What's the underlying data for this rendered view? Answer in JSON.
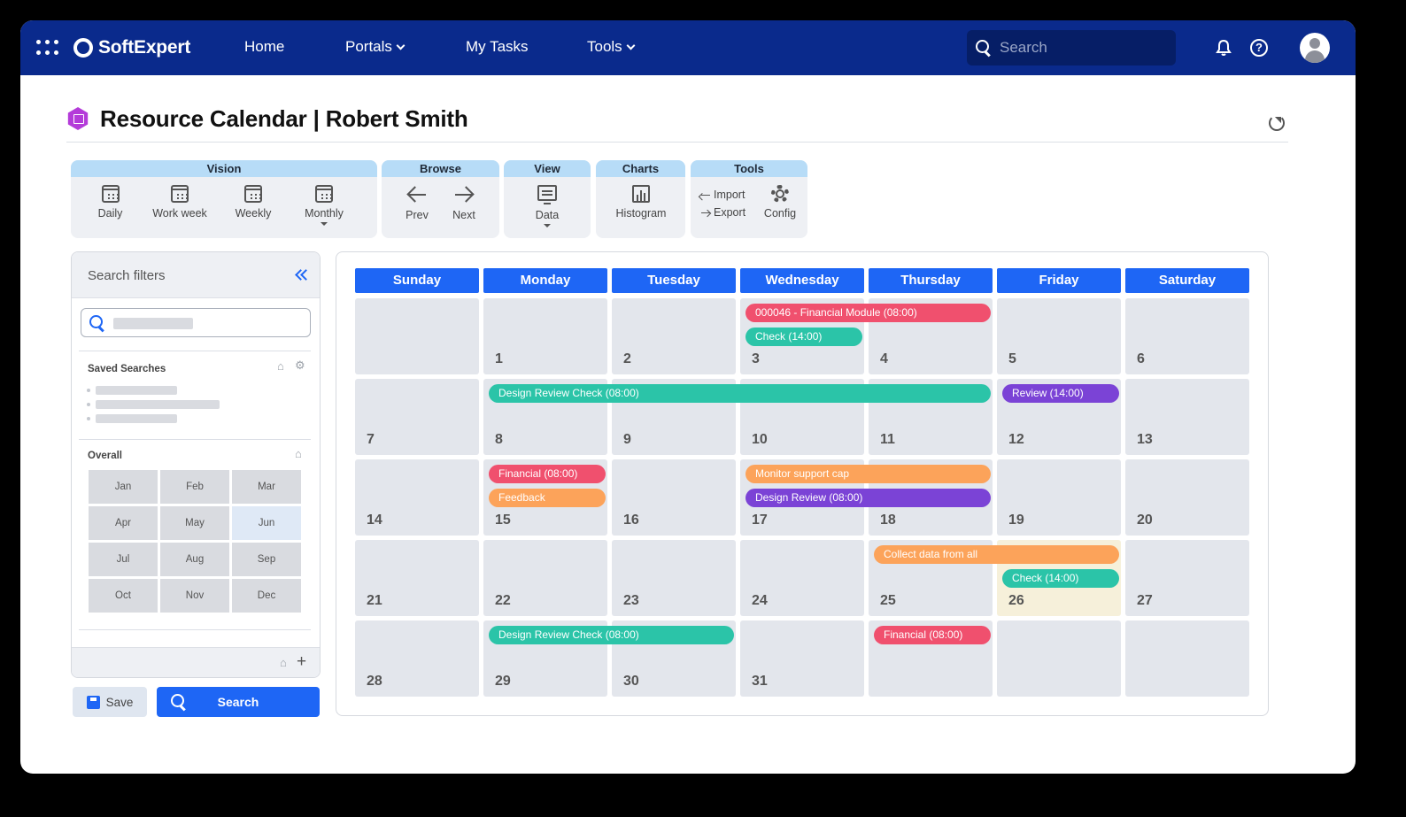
{
  "app": {
    "brand": "SoftExpert",
    "colors": {
      "header": "#0a2a8c",
      "accent": "#1e66f5"
    }
  },
  "nav": {
    "home": "Home",
    "portals": "Portals",
    "my_tasks": "My Tasks",
    "tools": "Tools"
  },
  "search": {
    "placeholder": "Search"
  },
  "page": {
    "title": "Resource Calendar | Robert Smith"
  },
  "ribbon": {
    "vision": {
      "label": "Vision",
      "daily": "Daily",
      "workweek": "Work week",
      "weekly": "Weekly",
      "monthly": "Monthly"
    },
    "browse": {
      "label": "Browse",
      "prev": "Prev",
      "next": "Next"
    },
    "view": {
      "label": "View",
      "data": "Data"
    },
    "charts": {
      "label": "Charts",
      "histogram": "Histogram"
    },
    "tools": {
      "label": "Tools",
      "import": "Import",
      "export": "Export",
      "config": "Config"
    }
  },
  "filters": {
    "title": "Search filters",
    "saved_searches": "Saved Searches",
    "overall": "Overall",
    "months": [
      "Jan",
      "Feb",
      "Mar",
      "Apr",
      "May",
      "Jun",
      "Jul",
      "Aug",
      "Sep",
      "Oct",
      "Nov",
      "Dec"
    ],
    "selected_month": "Jun",
    "save": "Save",
    "search": "Search"
  },
  "calendar": {
    "weekdays": [
      "Sunday",
      "Monday",
      "Tuesday",
      "Wednesday",
      "Thursday",
      "Friday",
      "Saturday"
    ],
    "weeks": [
      [
        "",
        "1",
        "2",
        "3",
        "4",
        "5",
        "6"
      ],
      [
        "7",
        "8",
        "9",
        "10",
        "11",
        "12",
        "13"
      ],
      [
        "14",
        "15",
        "16",
        "17",
        "18",
        "19",
        "20"
      ],
      [
        "21",
        "22",
        "23",
        "24",
        "25",
        "26",
        "27"
      ],
      [
        "28",
        "29",
        "30",
        "31",
        "",
        "",
        ""
      ]
    ],
    "highlighted_day": "26",
    "events": [
      {
        "label": "000046 - Financial Module (08:00)",
        "week": 0,
        "start": 3,
        "span": 2,
        "row": 0,
        "color": "#f0506e"
      },
      {
        "label": "Check (14:00)",
        "week": 0,
        "start": 3,
        "span": 1,
        "row": 1,
        "color": "#2bc4a8"
      },
      {
        "label": "Design Review Check (08:00)",
        "week": 1,
        "start": 1,
        "span": 4,
        "row": 0,
        "color": "#2bc4a8"
      },
      {
        "label": "Review (14:00)",
        "week": 1,
        "start": 5,
        "span": 1,
        "row": 0,
        "color": "#7b43d6"
      },
      {
        "label": "Financial (08:00)",
        "week": 2,
        "start": 1,
        "span": 1,
        "row": 0,
        "color": "#f0506e"
      },
      {
        "label": "Feedback",
        "week": 2,
        "start": 1,
        "span": 1,
        "row": 1,
        "color": "#fca35a"
      },
      {
        "label": "Monitor support cap",
        "week": 2,
        "start": 3,
        "span": 2,
        "row": 0,
        "color": "#fca35a"
      },
      {
        "label": "Design Review (08:00)",
        "week": 2,
        "start": 3,
        "span": 2,
        "row": 1,
        "color": "#7b43d6"
      },
      {
        "label": "Collect data from all",
        "week": 3,
        "start": 4,
        "span": 2,
        "row": 0,
        "color": "#fca35a"
      },
      {
        "label": "Check (14:00)",
        "week": 3,
        "start": 5,
        "span": 1,
        "row": 1,
        "color": "#2bc4a8"
      },
      {
        "label": "Design Review Check (08:00)",
        "week": 4,
        "start": 1,
        "span": 2,
        "row": 0,
        "color": "#2bc4a8"
      },
      {
        "label": "Financial (08:00)",
        "week": 4,
        "start": 4,
        "span": 1,
        "row": 0,
        "color": "#f0506e"
      }
    ]
  }
}
